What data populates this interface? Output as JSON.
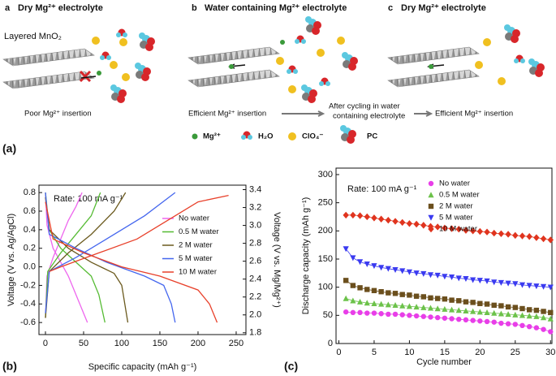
{
  "figure": {
    "panel_labels": [
      "(a)",
      "(b)",
      "(c)"
    ],
    "schematic": {
      "panels": [
        {
          "letter": "a",
          "title": "Dry Mg²⁺ electrolyte"
        },
        {
          "letter": "b",
          "title": "Water containing Mg²⁺ electrolyte"
        },
        {
          "letter": "c",
          "title": "Dry Mg²⁺ electrolyte"
        }
      ],
      "host_label": "Layered MnO₂",
      "captions": [
        "Poor Mg²⁺ insertion",
        "Efficient Mg²⁺ insertion",
        "Efficient Mg²⁺ insertion"
      ],
      "transition": [
        "After cycling in water",
        "containing electrolyte"
      ],
      "legend": [
        "Mg²⁺",
        "H₂O",
        "ClO₄⁻",
        "PC"
      ]
    }
  },
  "chart_data": [
    {
      "type": "line",
      "annotation": "Rate: 100 mA g⁻¹",
      "xlabel": "Specific capacity (mAh g⁻¹)",
      "ylabel": "Voltage (V vs. Ag/AgCl)",
      "y2label": "Voltage (V vs. Mg/Mg²⁺)",
      "xlim": [
        -8.5,
        262.8
      ],
      "xticks": [
        0,
        50,
        100,
        150,
        200,
        250
      ],
      "ylim": [
        -0.73,
        0.88
      ],
      "yticks": [
        -0.6,
        -0.4,
        -0.2,
        {
          "value": 0,
          "label": "0.0"
        },
        0.2,
        0.4,
        0.6,
        0.8
      ],
      "y2lim": [
        1.78,
        3.45
      ],
      "y2ticks": [
        1.8,
        {
          "value": 2,
          "label": "2.0"
        },
        2.2,
        2.4,
        2.6,
        2.8,
        {
          "value": 3,
          "label": "3.0"
        },
        3.2,
        3.4
      ],
      "legend": "center right",
      "series": [
        {
          "name": "No water",
          "color": "#ee66ee",
          "x": [
            0,
            2,
            10,
            20,
            30,
            40,
            50,
            55,
            null,
            0,
            2,
            10,
            20,
            30,
            40,
            48
          ],
          "values": [
            0.8,
            0.45,
            0.2,
            0.05,
            -0.1,
            -0.3,
            -0.5,
            -0.6,
            null,
            -0.55,
            -0.1,
            0.1,
            0.3,
            0.5,
            0.65,
            0.8
          ]
        },
        {
          "name": "0.5 M water",
          "color": "#55bb33",
          "x": [
            0,
            5,
            20,
            40,
            60,
            70,
            78,
            null,
            0,
            3,
            20,
            40,
            60,
            72
          ],
          "values": [
            0.8,
            0.4,
            0.2,
            0.05,
            -0.1,
            -0.3,
            -0.6,
            null,
            -0.55,
            -0.05,
            0.15,
            0.35,
            0.55,
            0.8
          ]
        },
        {
          "name": "2 M water",
          "color": "#6b5a1e",
          "x": [
            0,
            5,
            30,
            60,
            90,
            100,
            108,
            null,
            0,
            5,
            30,
            60,
            90,
            105
          ],
          "values": [
            0.75,
            0.4,
            0.2,
            0.05,
            -0.07,
            -0.2,
            -0.6,
            null,
            -0.55,
            -0.05,
            0.15,
            0.35,
            0.6,
            0.8
          ]
        },
        {
          "name": "5 M water",
          "color": "#4466ee",
          "x": [
            0,
            5,
            40,
            80,
            130,
            155,
            165,
            170,
            null,
            0,
            5,
            40,
            80,
            130,
            170
          ],
          "values": [
            0.8,
            0.35,
            0.2,
            0.05,
            -0.1,
            -0.2,
            -0.4,
            -0.6,
            null,
            -0.5,
            -0.05,
            0.1,
            0.3,
            0.55,
            0.8
          ]
        },
        {
          "name": "10 M water",
          "color": "#e8402a",
          "x": [
            0,
            10,
            50,
            100,
            150,
            200,
            215,
            225,
            null,
            5,
            20,
            70,
            120,
            160,
            200,
            240
          ],
          "values": [
            0.7,
            0.3,
            0.15,
            0,
            -0.1,
            -0.25,
            -0.4,
            -0.6,
            null,
            -0.05,
            0,
            0.15,
            0.3,
            0.5,
            0.7,
            0.77
          ]
        }
      ]
    },
    {
      "type": "line",
      "annotation": "Rate: 100 mA g⁻¹",
      "xlabel": "Cycle number",
      "ylabel": "Discharge capacity (mAh g⁻¹)",
      "xlim": [
        -0.4,
        30.2
      ],
      "xticks": [
        0,
        5,
        10,
        15,
        20,
        25,
        30
      ],
      "ylim": [
        0,
        311.5
      ],
      "yticks": [
        0,
        50,
        100,
        150,
        200,
        250,
        300
      ],
      "legend": "upper right",
      "x": [
        1,
        2,
        3,
        4,
        5,
        6,
        7,
        8,
        9,
        10,
        11,
        12,
        13,
        14,
        15,
        16,
        17,
        18,
        19,
        20,
        21,
        22,
        23,
        24,
        25,
        26,
        27,
        28,
        29,
        30
      ],
      "series": [
        {
          "name": "No water",
          "color": "#e83ee8",
          "marker": "circle",
          "values": [
            56,
            55,
            55,
            54,
            54,
            53,
            52,
            52,
            51,
            50,
            49,
            48,
            47,
            46,
            45,
            44,
            43,
            42,
            41,
            40,
            39,
            38,
            36,
            35,
            34,
            32,
            30,
            28,
            25,
            21
          ]
        },
        {
          "name": "0.5 M water",
          "color": "#6cc24a",
          "marker": "triangle-up",
          "values": [
            80,
            76,
            74,
            72,
            71,
            70,
            69,
            68,
            67,
            66,
            65,
            64,
            63,
            62,
            61,
            60,
            59,
            58,
            57,
            56,
            55,
            54,
            53,
            52,
            51,
            50,
            49,
            48,
            46,
            44
          ]
        },
        {
          "name": "2 M water",
          "color": "#6b4f1d",
          "marker": "square",
          "values": [
            112,
            103,
            99,
            96,
            94,
            92,
            90,
            89,
            87,
            86,
            84,
            83,
            81,
            80,
            79,
            77,
            76,
            74,
            73,
            71,
            70,
            68,
            67,
            65,
            64,
            62,
            60,
            59,
            57,
            55
          ]
        },
        {
          "name": "5 M water",
          "color": "#3a3af0",
          "marker": "triangle-down",
          "values": [
            168,
            152,
            145,
            141,
            138,
            135,
            133,
            131,
            129,
            127,
            125,
            124,
            122,
            121,
            119,
            118,
            116,
            115,
            113,
            112,
            111,
            109,
            108,
            107,
            106,
            104,
            103,
            102,
            101,
            100
          ]
        },
        {
          "name": "10 M water",
          "color": "#e0341e",
          "marker": "diamond",
          "values": [
            228,
            228,
            227,
            225,
            223,
            221,
            219,
            217,
            215,
            213,
            212,
            210,
            208,
            207,
            205,
            204,
            203,
            201,
            200,
            199,
            198,
            196,
            195,
            194,
            192,
            191,
            190,
            188,
            186,
            184
          ]
        }
      ]
    }
  ]
}
